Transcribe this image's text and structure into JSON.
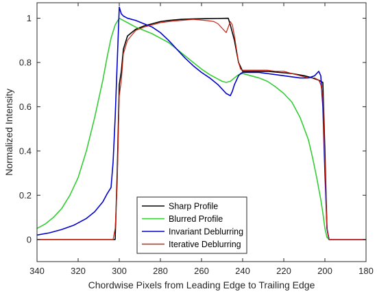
{
  "chart_data": {
    "type": "line",
    "title": "",
    "xlabel": "Chordwise Pixels from Leading Edge to Trailing Edge",
    "ylabel": "Normalized Intensity",
    "xlim": [
      180,
      340
    ],
    "x_reversed": true,
    "ylim": [
      -0.1,
      1.07
    ],
    "xticks": [
      340,
      320,
      300,
      280,
      260,
      240,
      220,
      200,
      180
    ],
    "yticks": [
      0,
      0.2,
      0.4,
      0.6,
      0.8,
      1
    ],
    "ytick_labels": [
      "0",
      "0.2",
      "0.4",
      "0.6",
      "0.8",
      "1"
    ],
    "grid": false,
    "legend_position": "bottom-center",
    "series": [
      {
        "name": "Sharp Profile",
        "color": "#000000",
        "x": [
          340,
          302,
          301,
          300,
          299,
          298,
          296,
          292,
          288,
          284,
          280,
          276,
          270,
          264,
          258,
          252,
          247,
          246,
          244,
          242,
          240,
          238,
          234,
          228,
          222,
          216,
          210,
          206,
          203,
          201,
          200,
          199,
          198,
          180
        ],
        "y": [
          0,
          0,
          0.3,
          0.7,
          0.76,
          0.86,
          0.92,
          0.95,
          0.965,
          0.975,
          0.985,
          0.99,
          0.995,
          0.997,
          0.998,
          0.999,
          1.0,
          0.97,
          0.9,
          0.8,
          0.76,
          0.76,
          0.76,
          0.76,
          0.755,
          0.75,
          0.74,
          0.73,
          0.72,
          0.71,
          0.4,
          0.05,
          0,
          0
        ]
      },
      {
        "name": "Blurred Profile",
        "color": "#33cc33",
        "x": [
          340,
          336,
          332,
          328,
          324,
          320,
          316,
          312,
          308,
          306,
          304,
          302,
          300,
          298,
          296,
          292,
          288,
          284,
          280,
          276,
          272,
          268,
          264,
          260,
          256,
          252,
          250,
          248,
          246,
          244,
          242,
          240,
          236,
          232,
          228,
          224,
          220,
          216,
          212,
          208,
          206,
          204,
          202,
          201,
          200,
          199,
          198,
          180
        ],
        "y": [
          0.05,
          0.07,
          0.1,
          0.14,
          0.2,
          0.28,
          0.4,
          0.55,
          0.72,
          0.82,
          0.91,
          0.97,
          1.0,
          0.99,
          0.98,
          0.96,
          0.945,
          0.93,
          0.91,
          0.89,
          0.86,
          0.83,
          0.8,
          0.77,
          0.745,
          0.725,
          0.715,
          0.71,
          0.715,
          0.73,
          0.745,
          0.75,
          0.74,
          0.73,
          0.715,
          0.69,
          0.66,
          0.62,
          0.55,
          0.45,
          0.37,
          0.28,
          0.18,
          0.12,
          0.05,
          0.01,
          0,
          0
        ]
      },
      {
        "name": "Invariant Deblurring",
        "color": "#0000cc",
        "x": [
          340,
          334,
          328,
          322,
          316,
          312,
          308,
          306,
          304,
          303,
          302,
          301,
          300,
          299,
          298,
          296,
          292,
          288,
          284,
          280,
          276,
          272,
          268,
          264,
          260,
          256,
          252,
          250,
          248,
          246,
          245,
          244,
          243,
          242,
          241,
          240,
          236,
          232,
          228,
          224,
          220,
          216,
          212,
          208,
          205,
          203,
          202,
          201,
          200,
          199,
          198,
          180
        ],
        "y": [
          0.02,
          0.03,
          0.045,
          0.065,
          0.095,
          0.125,
          0.17,
          0.205,
          0.235,
          0.35,
          0.55,
          0.8,
          1.05,
          1.02,
          1.01,
          1.0,
          0.99,
          0.975,
          0.96,
          0.935,
          0.9,
          0.86,
          0.82,
          0.785,
          0.755,
          0.73,
          0.7,
          0.68,
          0.66,
          0.65,
          0.67,
          0.7,
          0.72,
          0.74,
          0.75,
          0.755,
          0.755,
          0.755,
          0.75,
          0.745,
          0.74,
          0.735,
          0.73,
          0.73,
          0.74,
          0.76,
          0.74,
          0.6,
          0.3,
          0.05,
          0,
          0
        ]
      },
      {
        "name": "Iterative Deblurring",
        "color": "#cc2211",
        "x": [
          340,
          303,
          302,
          301,
          300,
          299,
          298,
          296,
          292,
          288,
          284,
          280,
          276,
          270,
          264,
          258,
          254,
          252,
          250,
          248,
          247,
          246,
          245,
          244,
          243,
          242,
          241,
          240,
          236,
          232,
          228,
          224,
          220,
          216,
          212,
          208,
          205,
          203,
          202,
          201,
          200,
          199,
          198,
          180
        ],
        "y": [
          0,
          0,
          0.05,
          0.25,
          0.65,
          0.72,
          0.84,
          0.9,
          0.945,
          0.96,
          0.97,
          0.98,
          0.985,
          0.99,
          0.995,
          0.99,
          0.985,
          0.975,
          0.955,
          0.935,
          0.96,
          0.985,
          0.97,
          0.92,
          0.86,
          0.8,
          0.77,
          0.765,
          0.765,
          0.765,
          0.765,
          0.76,
          0.76,
          0.75,
          0.74,
          0.73,
          0.73,
          0.72,
          0.7,
          0.65,
          0.35,
          0.05,
          0,
          0
        ]
      }
    ]
  }
}
